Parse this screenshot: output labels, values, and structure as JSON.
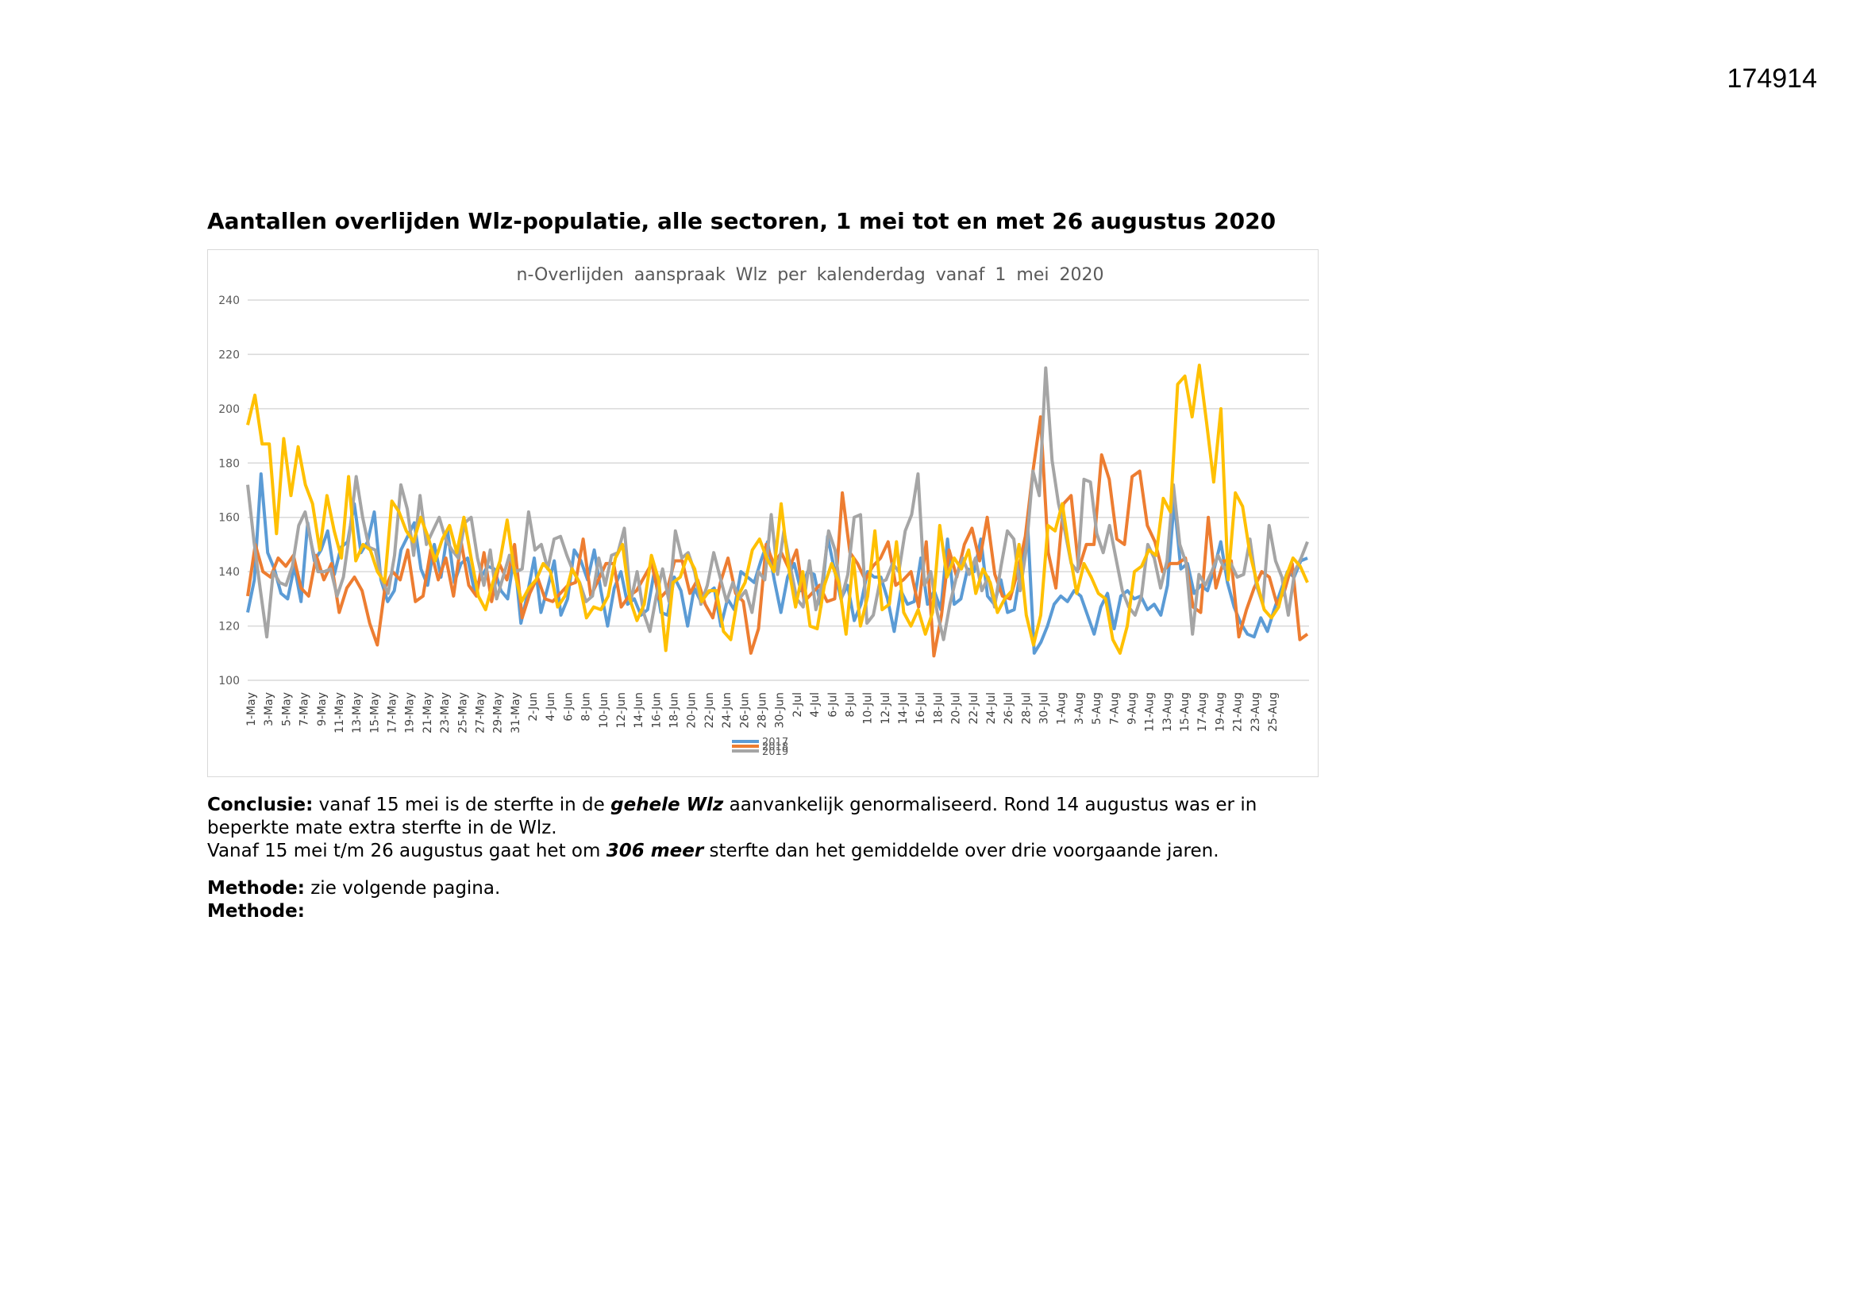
{
  "page": {
    "doc_number": "174914",
    "heading": "Aantallen overlijden Wlz-populatie, alle sectoren, 1 mei tot en met 26 augustus 2020"
  },
  "chart_data": {
    "type": "line",
    "title": "n-Overlijden aanspraak Wlz per kalenderdag vanaf 1 mei 2020",
    "xlabel": "",
    "ylabel": "",
    "ylim": [
      100,
      240
    ],
    "yticks": [
      100,
      120,
      140,
      160,
      180,
      200,
      220,
      240
    ],
    "grid": true,
    "legend_position": "bottom",
    "x_tick_labels": [
      "1-May",
      "3-May",
      "5-May",
      "7-May",
      "9-May",
      "11-May",
      "13-May",
      "15-May",
      "17-May",
      "19-May",
      "21-May",
      "23-May",
      "25-May",
      "27-May",
      "29-May",
      "31-May",
      "2-Jun",
      "4-Jun",
      "6-Jun",
      "8-Jun",
      "10-Jun",
      "12-Jun",
      "14-Jun",
      "16-Jun",
      "18-Jun",
      "20-Jun",
      "22-Jun",
      "24-Jun",
      "26-Jun",
      "28-Jun",
      "30-Jun",
      "2-Jul",
      "4-Jul",
      "6-Jul",
      "8-Jul",
      "10-Jul",
      "12-Jul",
      "14-Jul",
      "16-Jul",
      "18-Jul",
      "20-Jul",
      "22-Jul",
      "24-Jul",
      "26-Jul",
      "28-Jul",
      "30-Jul",
      "1-Aug",
      "3-Aug",
      "5-Aug",
      "7-Aug",
      "9-Aug",
      "11-Aug",
      "13-Aug",
      "15-Aug",
      "17-Aug",
      "19-Aug",
      "21-Aug",
      "23-Aug",
      "25-Aug"
    ],
    "series": [
      {
        "name": "2017",
        "color": "#5b9bd5",
        "values": [
          125,
          137,
          176,
          147,
          141,
          132,
          130,
          142,
          129,
          158,
          144,
          148,
          155,
          139,
          149,
          151,
          165,
          147,
          151,
          162,
          137,
          129,
          133,
          148,
          153,
          158,
          141,
          135,
          150,
          138,
          155,
          136,
          143,
          145,
          133,
          138,
          142,
          141,
          133,
          130,
          146,
          121,
          132,
          145,
          125,
          134,
          144,
          124,
          130,
          148,
          144,
          137,
          148,
          133,
          120,
          134,
          140,
          128,
          130,
          124,
          126,
          140,
          125,
          124,
          138,
          133,
          120,
          134,
          129,
          132,
          134,
          120,
          130,
          126,
          140,
          138,
          136,
          144,
          151,
          137,
          125,
          138,
          143,
          133,
          140,
          139,
          127,
          153,
          141,
          130,
          135,
          122,
          128,
          140,
          138,
          138,
          130,
          118,
          133,
          128,
          129,
          145,
          128,
          133,
          126,
          152,
          128,
          130,
          141,
          140,
          152,
          131,
          128,
          137,
          125,
          126,
          141,
          158,
          110,
          114,
          120,
          128,
          131,
          129,
          133,
          131,
          124,
          117,
          127,
          132,
          119,
          131,
          133,
          130,
          131,
          126,
          128,
          124,
          135,
          166,
          141,
          143,
          132,
          135,
          133,
          141,
          151,
          136,
          127,
          121,
          117,
          116,
          123,
          118,
          126,
          133,
          140,
          138,
          144,
          145
        ]
      },
      {
        "name": "2018",
        "color": "#ed7d31",
        "values": [
          131,
          150,
          140,
          138,
          145,
          142,
          146,
          134,
          131,
          146,
          137,
          143,
          125,
          134,
          138,
          133,
          121,
          113,
          134,
          140,
          137,
          148,
          129,
          131,
          148,
          137,
          145,
          131,
          151,
          135,
          131,
          147,
          129,
          143,
          137,
          150,
          123,
          132,
          138,
          130,
          129,
          132,
          135,
          136,
          152,
          131,
          137,
          143,
          143,
          127,
          131,
          133,
          138,
          143,
          130,
          133,
          144,
          144,
          132,
          137,
          128,
          123,
          136,
          145,
          132,
          129,
          110,
          119,
          150,
          143,
          147,
          141,
          148,
          129,
          132,
          135,
          129,
          130,
          169,
          147,
          143,
          137,
          142,
          145,
          151,
          135,
          137,
          140,
          127,
          151,
          109,
          124,
          148,
          138,
          150,
          156,
          144,
          160,
          139,
          131,
          130,
          140,
          153,
          177,
          197,
          147,
          134,
          165,
          168,
          141,
          150,
          150,
          183,
          174,
          152,
          150,
          175,
          177,
          157,
          151,
          140,
          143,
          143,
          145,
          127,
          125,
          160,
          134,
          144,
          144,
          116,
          126,
          134,
          140,
          138,
          128,
          133,
          143,
          115,
          117
        ]
      },
      {
        "name": "2019",
        "color": "#a5a5a5",
        "values": [
          172,
          151,
          133,
          116,
          140,
          136,
          135,
          142,
          157,
          162,
          150,
          140,
          140,
          141,
          131,
          138,
          155,
          175,
          160,
          149,
          148,
          137,
          132,
          146,
          172,
          163,
          146,
          168,
          150,
          155,
          160,
          152,
          148,
          145,
          158,
          160,
          145,
          135,
          148,
          130,
          138,
          146,
          140,
          141,
          162,
          148,
          150,
          141,
          152,
          153,
          146,
          140,
          136,
          129,
          131,
          145,
          135,
          146,
          147,
          156,
          129,
          140,
          125,
          118,
          131,
          141,
          129,
          155,
          145,
          147,
          140,
          128,
          135,
          147,
          138,
          129,
          136,
          130,
          133,
          125,
          140,
          137,
          161,
          139,
          155,
          142,
          130,
          127,
          144,
          126,
          136,
          155,
          148,
          130,
          139,
          160,
          161,
          121,
          124,
          136,
          137,
          143,
          140,
          155,
          161,
          176,
          135,
          140,
          125,
          115,
          128,
          138,
          145,
          139,
          145,
          133,
          138,
          127,
          142,
          155,
          152,
          133,
          149,
          177,
          168,
          215,
          181,
          165,
          155,
          143,
          140,
          174,
          173,
          154,
          147,
          157,
          145,
          133,
          127,
          124,
          131,
          150,
          145,
          134,
          144,
          172,
          150,
          143,
          117,
          139,
          135,
          140,
          146,
          141,
          143,
          138,
          139,
          152,
          135,
          128,
          157,
          144,
          138,
          124,
          140,
          145,
          151
        ]
      },
      {
        "name": "",
        "color": "#ffc000",
        "values": [
          194,
          205,
          187,
          187,
          154,
          189,
          168,
          186,
          172,
          165,
          148,
          168,
          155,
          145,
          175,
          144,
          150,
          148,
          140,
          136,
          166,
          162,
          155,
          151,
          160,
          153,
          144,
          152,
          157,
          147,
          160,
          145,
          131,
          126,
          136,
          144,
          159,
          140,
          129,
          134,
          137,
          143,
          140,
          127,
          131,
          141,
          136,
          123,
          127,
          126,
          131,
          145,
          150,
          130,
          122,
          128,
          146,
          137,
          111,
          136,
          138,
          146,
          141,
          129,
          133,
          133,
          118,
          115,
          131,
          136,
          148,
          152,
          145,
          140,
          165,
          142,
          127,
          140,
          120,
          119,
          135,
          143,
          136,
          117,
          145,
          120,
          131,
          155,
          126,
          128,
          151,
          125,
          120,
          126,
          117,
          125,
          157,
          138,
          145,
          141,
          148,
          132,
          141,
          136,
          125,
          130,
          133,
          150,
          124,
          113,
          124,
          157,
          155,
          165,
          147,
          132,
          143,
          138,
          132,
          130,
          115,
          110,
          120,
          140,
          142,
          148,
          146,
          167,
          162,
          209,
          212,
          197,
          216,
          195,
          173,
          200,
          137,
          169,
          164,
          147,
          136,
          126,
          123,
          127,
          138,
          145,
          142,
          136
        ]
      }
    ]
  },
  "text": {
    "conclusion_label": "Conclusie:",
    "conclusion_part1": " vanaf 15 mei is de sterfte in de ",
    "conclusion_emph1": "gehele Wlz",
    "conclusion_part2": " aanvankelijk genormaliseerd. Rond 14 augustus was er in beperkte mate extra sterfte in de Wlz.",
    "line2_part1": "Vanaf 15 mei t/m 26 augustus gaat het om ",
    "line2_emph": "306 meer",
    "line2_part2": " sterfte dan het gemiddelde over drie voorgaande jaren.",
    "method_label": "Methode:",
    "method_text": " zie volgende pagina.",
    "method_label2": "Methode:"
  }
}
